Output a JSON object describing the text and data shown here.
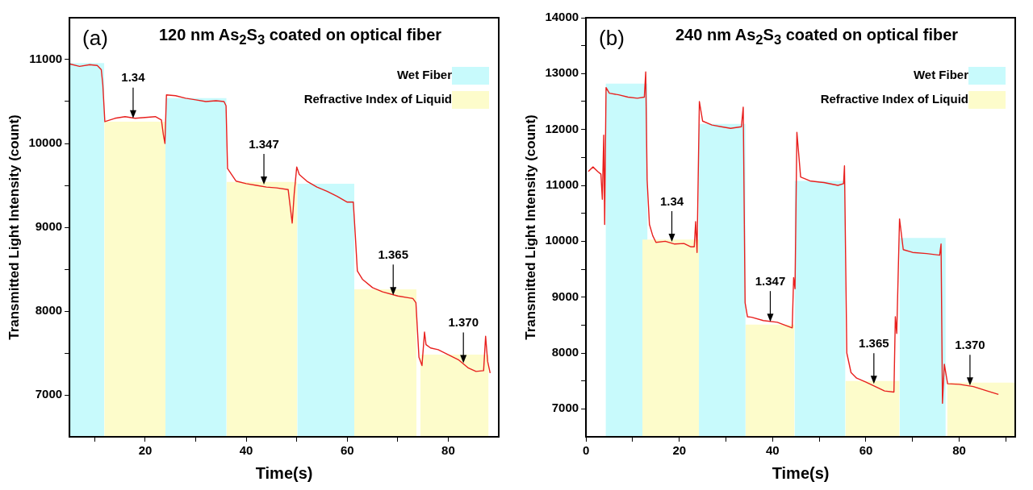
{
  "chart_data": [
    {
      "type": "line",
      "title": "120 nm As$_{2}$S$_{3}$ coated on optical fiber",
      "xlabel": "Time(s)",
      "ylabel": "Transmitted Light Intensity (count)",
      "xlim": [
        5,
        90
      ],
      "xticks": [
        {
          "value": 10,
          "label": null
        },
        20,
        {
          "value": 30,
          "label": null
        },
        40,
        {
          "value": 50,
          "label": null
        },
        60,
        {
          "value": 70,
          "label": null
        },
        80
      ],
      "ylim": [
        6500,
        11500
      ],
      "yticks": [
        7000,
        {
          "value": 7500,
          "label": null
        },
        8000,
        {
          "value": 8500,
          "label": null
        },
        9000,
        {
          "value": 9500,
          "label": null
        },
        10000,
        {
          "value": 10500,
          "label": null
        },
        11000
      ],
      "legend": "top right",
      "annotations": [
        "(a)",
        {
          "text": "1.34",
          "x": 17.6,
          "y": 10300
        },
        {
          "text": "1.347",
          "x": 43.5,
          "y": 9510
        },
        {
          "text": "1.365",
          "x": 69.1,
          "y": 8190
        },
        {
          "text": "1.370",
          "x": 83,
          "y": 7380
        }
      ],
      "series": [
        {
          "type": "area",
          "name": "Wet Fiber",
          "color": "#c8fafc",
          "x": [
            5,
            11.9
          ],
          "values": [
            10960,
            10960
          ]
        },
        {
          "type": "area",
          "name": "Refractive Index of Liquid",
          "color": "#fdfccb",
          "x": [
            11.9,
            24
          ],
          "values": [
            10260,
            10260
          ]
        },
        {
          "type": "area",
          "color": "#c8fafc",
          "x": [
            24,
            36.1
          ],
          "values": [
            10540,
            10540
          ]
        },
        {
          "type": "area",
          "color": "#fdfccb",
          "x": [
            36.1,
            50.1
          ],
          "values": [
            9540,
            9540
          ]
        },
        {
          "type": "area",
          "color": "#c8fafc",
          "x": [
            50.1,
            61.4
          ],
          "values": [
            9520,
            9520
          ]
        },
        {
          "type": "area",
          "color": "#fdfccb",
          "x": [
            61.4,
            73.7
          ],
          "values": [
            8260,
            8260
          ]
        },
        {
          "type": "area",
          "color": "#fdfccb",
          "x": [
            74.5,
            88
          ],
          "values": [
            7480,
            7480
          ]
        },
        {
          "type": "line",
          "color": "#e8201e",
          "x": [
            5,
            7,
            9,
            10.5,
            11.3,
            11.6,
            12,
            14,
            16,
            18,
            20,
            22,
            23.2,
            23.6,
            23.9,
            24.2,
            26,
            28,
            30,
            32,
            34,
            35.6,
            36,
            36.3,
            38,
            40,
            42,
            44,
            46,
            48.3,
            48.8,
            49.1,
            49.5,
            50,
            50.5,
            52,
            54,
            56,
            58,
            60,
            61.2,
            61.6,
            62,
            63,
            65,
            67,
            70,
            73,
            73.6,
            74.2,
            74.8,
            75.3,
            75.6,
            76.5,
            78,
            80,
            82,
            84,
            85.5,
            87,
            87.4,
            87.8,
            88.3
          ],
          "values": [
            10950,
            10920,
            10940,
            10930,
            10880,
            10700,
            10260,
            10300,
            10320,
            10300,
            10310,
            10320,
            10280,
            10100,
            10000,
            10580,
            10570,
            10540,
            10520,
            10500,
            10510,
            10500,
            10450,
            9700,
            9550,
            9520,
            9500,
            9480,
            9470,
            9450,
            9200,
            9050,
            9400,
            9720,
            9630,
            9550,
            9480,
            9430,
            9370,
            9300,
            9300,
            8900,
            8480,
            8380,
            8280,
            8230,
            8180,
            8150,
            8100,
            7450,
            7350,
            7750,
            7600,
            7560,
            7540,
            7480,
            7420,
            7320,
            7280,
            7290,
            7700,
            7400,
            7260
          ]
        }
      ]
    },
    {
      "type": "line",
      "title": "240 nm As$_{2}$S$_{3}$ coated on optical fiber",
      "xlabel": "Time(s)",
      "ylabel": "Transmitted Light Intensity (count)",
      "xlim": [
        0,
        92
      ],
      "xticks": [
        0,
        {
          "value": 10,
          "label": null
        },
        20,
        {
          "value": 30,
          "label": null
        },
        40,
        {
          "value": 50,
          "label": null
        },
        60,
        {
          "value": 70,
          "label": null
        },
        80,
        {
          "value": 90,
          "label": null
        }
      ],
      "ylim": [
        6500,
        14000
      ],
      "yticks": [
        7000,
        {
          "value": 7500,
          "label": null
        },
        8000,
        {
          "value": 8500,
          "label": null
        },
        9000,
        {
          "value": 9500,
          "label": null
        },
        10000,
        {
          "value": 10500,
          "label": null
        },
        11000,
        {
          "value": 11500,
          "label": null
        },
        12000,
        {
          "value": 12500,
          "label": null
        },
        13000,
        {
          "value": 13500,
          "label": null
        },
        14000
      ],
      "legend": "top right",
      "annotations": [
        "(b)",
        {
          "text": "1.34",
          "x": 18.4,
          "y": 9990
        },
        {
          "text": "1.347",
          "x": 39.5,
          "y": 8560
        },
        {
          "text": "1.365",
          "x": 61.7,
          "y": 7450
        },
        {
          "text": "1.370",
          "x": 82.3,
          "y": 7420
        }
      ],
      "series": [
        {
          "type": "area",
          "name": "Wet Fiber",
          "color": "#c8fafc",
          "x": [
            4.2,
            13.2
          ],
          "values": [
            12820,
            12820
          ]
        },
        {
          "type": "area",
          "name": "Refractive Index of Liquid",
          "color": "#fdfccb",
          "x": [
            12.1,
            24.2
          ],
          "values": [
            10030,
            10030
          ]
        },
        {
          "type": "area",
          "color": "#c8fafc",
          "x": [
            24.2,
            34.2
          ],
          "values": [
            12100,
            12100
          ]
        },
        {
          "type": "area",
          "color": "#fdfccb",
          "x": [
            34.2,
            44.7
          ],
          "values": [
            8510,
            8510
          ]
        },
        {
          "type": "area",
          "color": "#c8fafc",
          "x": [
            44.7,
            55.6
          ],
          "values": [
            11080,
            11080
          ]
        },
        {
          "type": "area",
          "color": "#fdfccb",
          "x": [
            55.6,
            67.2
          ],
          "values": [
            7500,
            7500
          ]
        },
        {
          "type": "area",
          "color": "#c8fafc",
          "x": [
            67.2,
            77.1
          ],
          "values": [
            10060,
            10060
          ]
        },
        {
          "type": "area",
          "color": "#fdfccb",
          "x": [
            77.4,
            92
          ],
          "values": [
            7470,
            7470
          ]
        },
        {
          "type": "line",
          "color": "#e8201e",
          "x": [
            0.5,
            1.5,
            2.5,
            3.2,
            3.5,
            3.8,
            4.0,
            4.3,
            5,
            7,
            9,
            11,
            12.5,
            12.8,
            13.1,
            13.6,
            14.3,
            15,
            17,
            19,
            21,
            22.5,
            23.2,
            23.5,
            23.8,
            24.3,
            25,
            27,
            29,
            31,
            33.3,
            33.7,
            34.1,
            34.6,
            35.5,
            38,
            41,
            44.2,
            44.5,
            44.8,
            45.2,
            46,
            48,
            51,
            54,
            55.2,
            55.4,
            55.9,
            56.8,
            58,
            60,
            62,
            64,
            66,
            66.3,
            66.6,
            67.2,
            68,
            70,
            73,
            75.8,
            76.1,
            76.4,
            76.8,
            77.5,
            80,
            83,
            86,
            88.4
          ],
          "values": [
            11250,
            11330,
            11250,
            11200,
            10750,
            11900,
            10300,
            12750,
            12650,
            12620,
            12580,
            12560,
            12580,
            13030,
            11100,
            10300,
            10100,
            9980,
            10000,
            9950,
            9960,
            9900,
            9900,
            10350,
            9800,
            12500,
            12150,
            12080,
            12050,
            12020,
            12050,
            12400,
            8900,
            8650,
            8640,
            8580,
            8550,
            8450,
            9350,
            9150,
            11950,
            11150,
            11080,
            11050,
            11000,
            11030,
            11350,
            8000,
            7650,
            7550,
            7480,
            7400,
            7320,
            7300,
            8650,
            8350,
            10400,
            9850,
            9800,
            9780,
            9750,
            9950,
            7100,
            7800,
            7450,
            7440,
            7400,
            7320,
            7260
          ]
        }
      ]
    }
  ]
}
